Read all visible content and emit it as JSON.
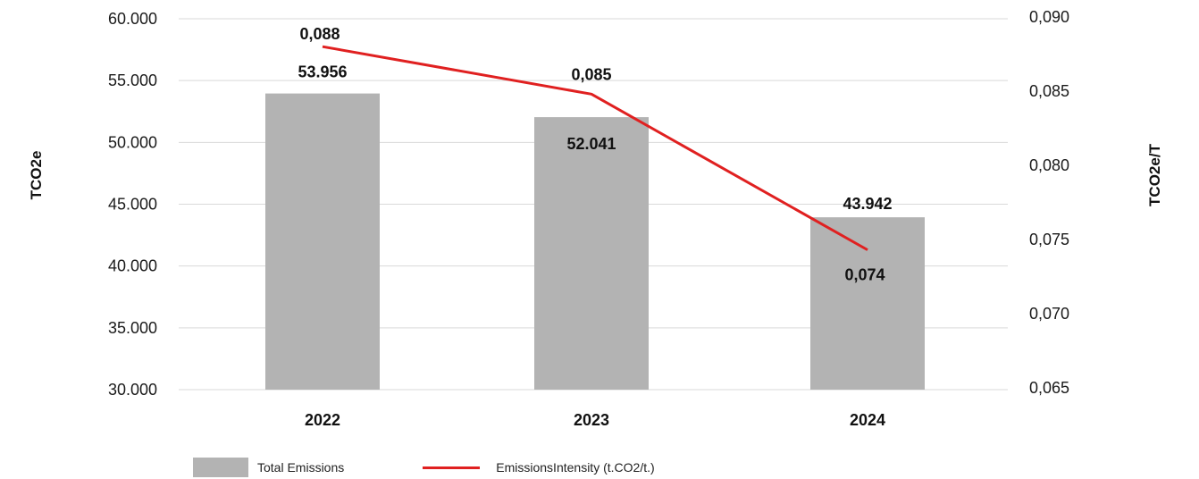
{
  "chart_data": {
    "type": "bar",
    "categories": [
      "2022",
      "2023",
      "2024"
    ],
    "series": [
      {
        "name": "Total Emissions",
        "type": "bar",
        "axis": "left",
        "values": [
          53956,
          52041,
          43942
        ],
        "labels": [
          "53.956",
          "52.041",
          "43.942"
        ],
        "color": "#b3b3b3"
      },
      {
        "name": "EmissionsIntensity (t.CO2/t.)",
        "type": "line",
        "axis": "right",
        "values": [
          0.088,
          0.0848,
          0.0743
        ],
        "labels": [
          "0,088",
          "0,085",
          "0,074"
        ],
        "color": "#e02020"
      }
    ],
    "ylabel": "TCO2e",
    "y2label": "TCO2e/T",
    "ylim": [
      30000,
      60000
    ],
    "y2lim": [
      0.065,
      0.09
    ],
    "yticks": [
      30000,
      35000,
      40000,
      45000,
      50000,
      55000,
      60000
    ],
    "yticklabels": [
      "30.000",
      "35.000",
      "40.000",
      "45.000",
      "50.000",
      "55.000",
      "60.000"
    ],
    "y2ticks": [
      0.065,
      0.07,
      0.075,
      0.08,
      0.085,
      0.09
    ],
    "y2ticklabels": [
      "0,065",
      "0,070",
      "0,075",
      "0,080",
      "0,085",
      "0,090"
    ],
    "grid": true,
    "legend": "bottom"
  }
}
